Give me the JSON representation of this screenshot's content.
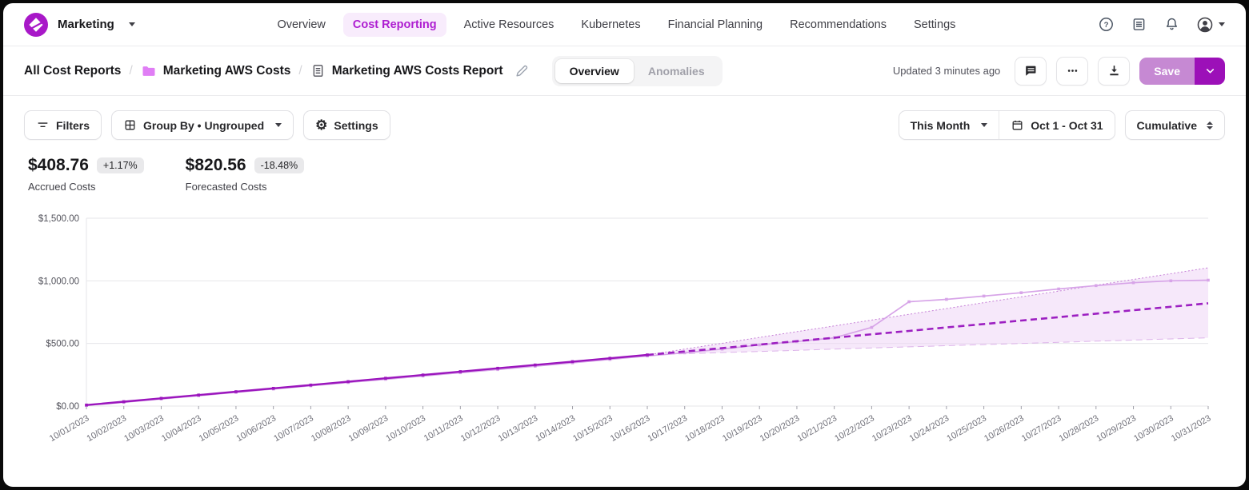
{
  "app": {
    "org_name": "Marketing",
    "accent_color": "#a818c8"
  },
  "nav": {
    "items": [
      "Overview",
      "Cost Reporting",
      "Active Resources",
      "Kubernetes",
      "Financial Planning",
      "Recommendations",
      "Settings"
    ],
    "active": "Cost Reporting"
  },
  "header": {
    "breadcrumb": {
      "root": "All Cost Reports",
      "folder": "Marketing AWS Costs",
      "report": "Marketing AWS Costs Report"
    },
    "tabs": [
      {
        "label": "Overview"
      },
      {
        "label": "Anomalies"
      }
    ],
    "updated": "Updated 3 minutes ago",
    "save_label": "Save"
  },
  "toolbar": {
    "filters_label": "Filters",
    "group_by_label": "Group By • Ungrouped",
    "settings_label": "Settings",
    "period_label": "This Month",
    "date_range_label": "Oct 1 - Oct 31",
    "mode_label": "Cumulative"
  },
  "metrics": [
    {
      "value": "$408.76",
      "delta": "+1.17%",
      "label": "Accrued Costs"
    },
    {
      "value": "$820.56",
      "delta": "-18.48%",
      "label": "Forecasted Costs"
    }
  ],
  "chart_data": {
    "type": "line",
    "title": "",
    "xlabel": "",
    "ylabel": "",
    "ylim": [
      0,
      1500
    ],
    "grid": true,
    "legend": "none",
    "band_color": "#eed2f5",
    "yticks": [
      {
        "value": 0,
        "label": "$0.00"
      },
      {
        "value": 500,
        "label": "$500.00"
      },
      {
        "value": 1000,
        "label": "$1,000.00"
      },
      {
        "value": 1500,
        "label": "$1,500.00"
      }
    ],
    "x": [
      "10/01/2023",
      "10/02/2023",
      "10/03/2023",
      "10/04/2023",
      "10/05/2023",
      "10/06/2023",
      "10/07/2023",
      "10/08/2023",
      "10/09/2023",
      "10/10/2023",
      "10/11/2023",
      "10/12/2023",
      "10/13/2023",
      "10/14/2023",
      "10/15/2023",
      "10/16/2023",
      "10/17/2023",
      "10/18/2023",
      "10/19/2023",
      "10/20/2023",
      "10/21/2023",
      "10/22/2023",
      "10/23/2023",
      "10/24/2023",
      "10/25/2023",
      "10/26/2023",
      "10/27/2023",
      "10/28/2023",
      "10/29/2023",
      "10/30/2023",
      "10/31/2023"
    ],
    "series": [
      {
        "name": "forecast-lower",
        "style": "dashed",
        "color": "#ddb4ea",
        "width": 1,
        "markers": false,
        "values": [
          null,
          null,
          null,
          null,
          null,
          null,
          null,
          null,
          null,
          null,
          null,
          null,
          null,
          null,
          null,
          408.76,
          418,
          427,
          436,
          445,
          455,
          464,
          473,
          482,
          491,
          500,
          509,
          518,
          527,
          536,
          545
        ]
      },
      {
        "name": "forecast-upper",
        "style": "dotted",
        "color": "#c57fd6",
        "width": 1,
        "markers": false,
        "values": [
          null,
          null,
          null,
          null,
          null,
          null,
          null,
          null,
          null,
          null,
          null,
          null,
          null,
          null,
          null,
          408.76,
          455,
          501,
          548,
          594,
          640,
          687,
          733,
          779,
          826,
          872,
          918,
          965,
          1011,
          1057,
          1104
        ]
      },
      {
        "name": "previous-trend",
        "style": "solid",
        "color": "#d7a4e8",
        "width": 1.7,
        "markers": true,
        "values": [
          5,
          30,
          57,
          83,
          110,
          136,
          162,
          188,
          214,
          240,
          266,
          292,
          318,
          345,
          372,
          400,
          425,
          455,
          488,
          515,
          545,
          628,
          833,
          852,
          878,
          905,
          935,
          962,
          985,
          1000,
          1005
        ]
      },
      {
        "name": "forecasted-costs",
        "style": "dashed",
        "color": "#9c1fc1",
        "width": 2.6,
        "markers": false,
        "values": [
          null,
          null,
          null,
          null,
          null,
          null,
          null,
          null,
          null,
          null,
          null,
          null,
          null,
          null,
          null,
          408.76,
          436,
          463,
          491,
          518,
          546,
          573,
          600,
          628,
          655,
          683,
          710,
          738,
          765,
          793,
          820.56
        ]
      },
      {
        "name": "accrued-costs",
        "style": "solid",
        "color": "#9b16bd",
        "width": 2.4,
        "markers": true,
        "values": [
          8,
          35,
          62,
          88,
          115,
          142,
          168,
          195,
          222,
          248,
          275,
          302,
          328,
          355,
          382,
          408.76,
          null,
          null,
          null,
          null,
          null,
          null,
          null,
          null,
          null,
          null,
          null,
          null,
          null,
          null,
          null
        ]
      }
    ]
  }
}
